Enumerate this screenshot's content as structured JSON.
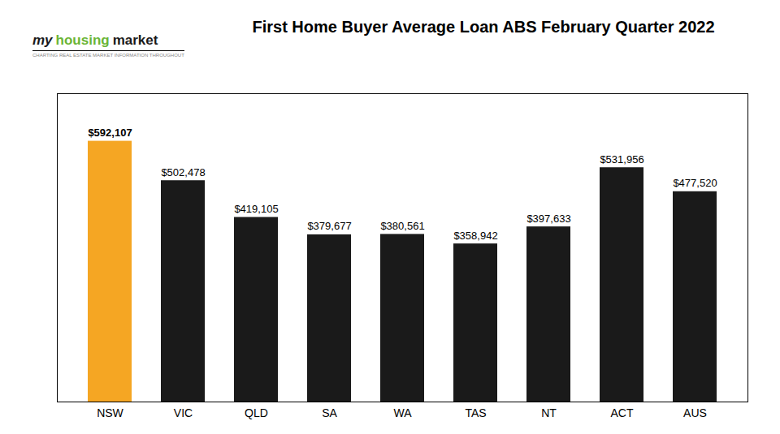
{
  "chart_data": {
    "type": "bar",
    "title": "First Home Buyer Average Loan ABS February Quarter 2022",
    "categories": [
      "NSW",
      "VIC",
      "QLD",
      "SA",
      "WA",
      "TAS",
      "NT",
      "ACT",
      "AUS"
    ],
    "values": [
      592107,
      502478,
      419105,
      379677,
      380561,
      358942,
      397633,
      531956,
      477520
    ],
    "value_labels": [
      "$592,107",
      "$502,478",
      "$419,105",
      "$379,677",
      "$380,561",
      "$358,942",
      "$397,633",
      "$531,956",
      "$477,520"
    ],
    "colors": [
      "#F5A623",
      "#1a1a1a",
      "#1a1a1a",
      "#1a1a1a",
      "#1a1a1a",
      "#1a1a1a",
      "#1a1a1a",
      "#1a1a1a",
      "#1a1a1a"
    ],
    "ylim": [
      0,
      700000
    ],
    "data_labels": true,
    "tick_labels": "x",
    "grid": false,
    "annotations": [
      {
        "text": "my",
        "color": "#1a1a1a"
      },
      {
        "text": "housing",
        "color": "#6ab536"
      },
      {
        "text": "market",
        "color": "#1a1a1a"
      },
      {
        "text": "CHARTING REAL ESTATE MARKET INFORMATION THROUGHOUT",
        "color": "#888888"
      }
    ]
  }
}
